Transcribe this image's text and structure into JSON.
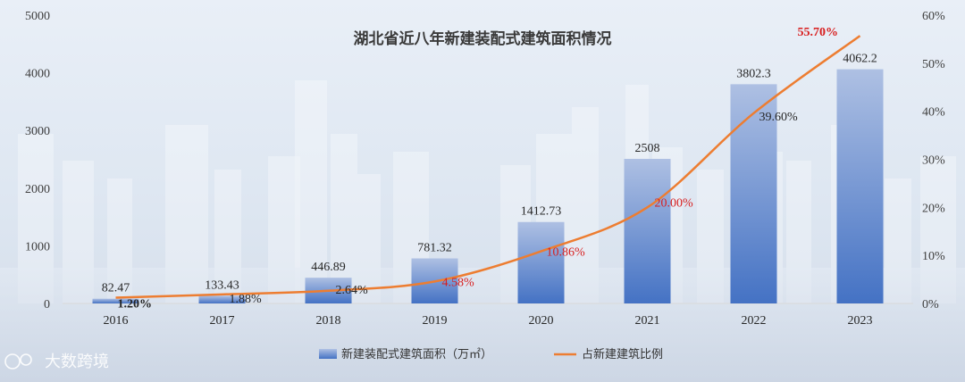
{
  "watermark": "大数跨境",
  "chart_data": {
    "type": "bar+line",
    "title": "湖北省近八年新建装配式建筑面积情况",
    "categories": [
      "2016",
      "2017",
      "2018",
      "2019",
      "2020",
      "2021",
      "2022",
      "2023"
    ],
    "series": [
      {
        "name": "新建装配式建筑面积（万㎡）",
        "type": "bar",
        "axis": "left",
        "values": [
          82.47,
          133.43,
          446.89,
          781.32,
          1412.73,
          2508,
          3802.3,
          4062.2
        ],
        "labels": [
          "82.47",
          "133.43",
          "446.89",
          "781.32",
          "1412.73",
          "2508",
          "3802.3",
          "4062.2"
        ],
        "color": "#4472c4"
      },
      {
        "name": "占新建建筑比例",
        "type": "line",
        "axis": "right",
        "values": [
          1.2,
          1.88,
          2.64,
          4.58,
          10.86,
          20.0,
          39.6,
          55.7
        ],
        "labels": [
          "1.20%",
          "1.88%",
          "2.64%",
          "4.58%",
          "10.86%",
          "20.00%",
          "39.60%",
          "55.70%"
        ],
        "label_colors": [
          "#262626",
          "#262626",
          "#262626",
          "#d81e1e",
          "#d81e1e",
          "#d81e1e",
          "#262626",
          "#d81e1e"
        ],
        "label_bold": [
          true,
          false,
          false,
          false,
          false,
          false,
          false,
          true
        ],
        "color": "#ed7d31"
      }
    ],
    "y_left": {
      "min": 0,
      "max": 5000,
      "ticks": [
        "0",
        "1000",
        "2000",
        "3000",
        "4000",
        "5000"
      ]
    },
    "y_right": {
      "min": 0,
      "max": 60,
      "ticks": [
        "0%",
        "10%",
        "20%",
        "30%",
        "40%",
        "50%",
        "60%"
      ]
    },
    "legend_position": "bottom",
    "grid": false
  }
}
